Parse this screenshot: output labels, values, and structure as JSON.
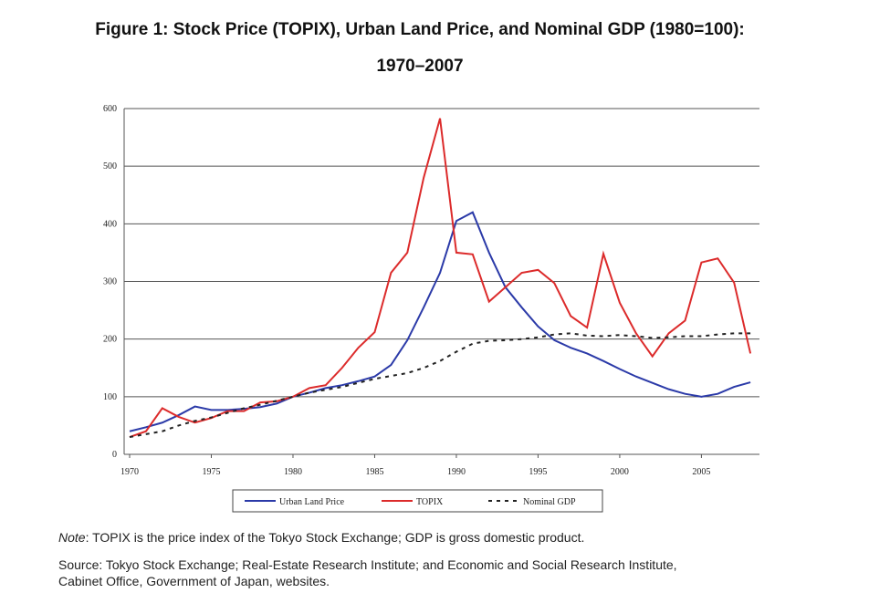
{
  "chart_data": {
    "type": "line",
    "title": "Figure 1: Stock Price (TOPIX), Urban Land Price, and Nominal GDP (1980=100):",
    "subtitle": "1970–2007",
    "x": [
      1970,
      1971,
      1972,
      1973,
      1974,
      1975,
      1976,
      1977,
      1978,
      1979,
      1980,
      1981,
      1982,
      1983,
      1984,
      1985,
      1986,
      1987,
      1988,
      1989,
      1990,
      1991,
      1992,
      1993,
      1994,
      1995,
      1996,
      1997,
      1998,
      1999,
      2000,
      2001,
      2002,
      2003,
      2004,
      2005,
      2006,
      2007,
      2008
    ],
    "series": [
      {
        "name": "Urban Land Price",
        "color": "#2b3aa8",
        "style": "solid",
        "values": [
          40,
          47,
          55,
          68,
          83,
          77,
          77,
          79,
          82,
          88,
          100,
          107,
          115,
          120,
          127,
          135,
          155,
          198,
          255,
          315,
          405,
          420,
          350,
          290,
          255,
          222,
          198,
          185,
          175,
          162,
          148,
          135,
          124,
          113,
          105,
          100,
          105,
          117,
          125
        ]
      },
      {
        "name": "TOPIX",
        "color": "#dc2b2b",
        "style": "solid",
        "values": [
          30,
          40,
          80,
          65,
          55,
          63,
          75,
          75,
          90,
          92,
          100,
          115,
          120,
          150,
          185,
          212,
          315,
          350,
          480,
          583,
          350,
          347,
          265,
          290,
          315,
          320,
          297,
          240,
          220,
          348,
          263,
          210,
          170,
          210,
          232,
          333,
          340,
          298,
          175
        ]
      },
      {
        "name": "Nominal GDP",
        "color": "#222222",
        "style": "dotted",
        "values": [
          30,
          35,
          40,
          50,
          58,
          64,
          72,
          80,
          86,
          93,
          100,
          107,
          112,
          117,
          124,
          131,
          136,
          141,
          150,
          162,
          178,
          192,
          197,
          198,
          200,
          203,
          208,
          210,
          206,
          205,
          207,
          205,
          202,
          203,
          205,
          205,
          208,
          210,
          210
        ]
      }
    ],
    "xlim": [
      1970,
      2009
    ],
    "xticks": [
      1970,
      1975,
      1980,
      1985,
      1990,
      1995,
      2000,
      2005
    ],
    "ylim": [
      0,
      600
    ],
    "yticks": [
      0,
      100,
      200,
      300,
      400,
      500,
      600
    ],
    "grid": true,
    "note": {
      "label": "Note",
      "text": ": TOPIX is the price index of the Tokyo Stock Exchange; GDP is gross domestic product."
    },
    "source": [
      "Source: Tokyo Stock Exchange; Real-Estate Research Institute; and Economic and Social Research Institute,",
      "Cabinet Office, Government of Japan, websites."
    ]
  }
}
